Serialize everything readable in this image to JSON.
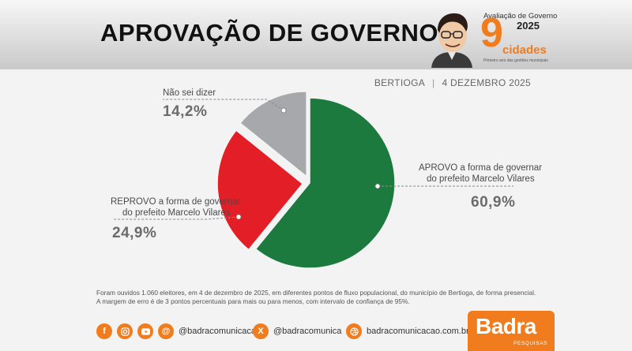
{
  "header": {
    "title": "APROVAÇÃO DE GOVERNO",
    "brand_top": "Avaliação de Governo",
    "brand_year": "2025",
    "brand_number": "9",
    "brand_word": "cidades",
    "brand_sub": "Primeiro ano das gestões municipais"
  },
  "meta": {
    "city": "BERTIOGA",
    "date": "4 DEZEMBRO 2025"
  },
  "chart_data": {
    "type": "pie",
    "title": "APROVAÇÃO DE GOVERNO",
    "slices": [
      {
        "label": "APROVO a forma de governar do prefeito Marcelo Vilares",
        "value": 60.9,
        "display": "60,9%",
        "color": "#1d7a3e"
      },
      {
        "label": "REPROVO a forma de governar do prefeito Marcelo Vilares",
        "value": 24.9,
        "display": "24,9%",
        "color": "#e41e26"
      },
      {
        "label": "Não sei dizer",
        "value": 14.2,
        "display": "14,2%",
        "color": "#a6a8ab"
      }
    ],
    "annotations": {
      "approve_line1": "APROVO a forma de governar",
      "approve_line2": "do prefeito Marcelo Vilares",
      "disapprove_line1": "REPROVO a forma de governar",
      "disapprove_line2": "do prefeito Marcelo Vilares",
      "dontknow": "Não sei dizer"
    }
  },
  "notes": {
    "line1": "Foram ouvidos 1.060 eleitores, em 4 de dezembro de 2025, em diferentes pontos de fluxo populacional, do município de Bertioga, de forma presencial.",
    "line2": "A margem de erro é de 3 pontos percentuais para mais ou para menos, com intervalo de confiança de 95%."
  },
  "footer": {
    "social_handle": "@badracomunicacao",
    "x_handle": "@badracomunica",
    "website": "badracomunicacao.com.br",
    "icons": [
      "facebook-icon",
      "instagram-icon",
      "youtube-icon",
      "threads-icon",
      "x-icon",
      "dribbble-icon"
    ],
    "brand_name": "Badra",
    "brand_sub": "PESQUISAS",
    "accent": "#f07c1e"
  }
}
